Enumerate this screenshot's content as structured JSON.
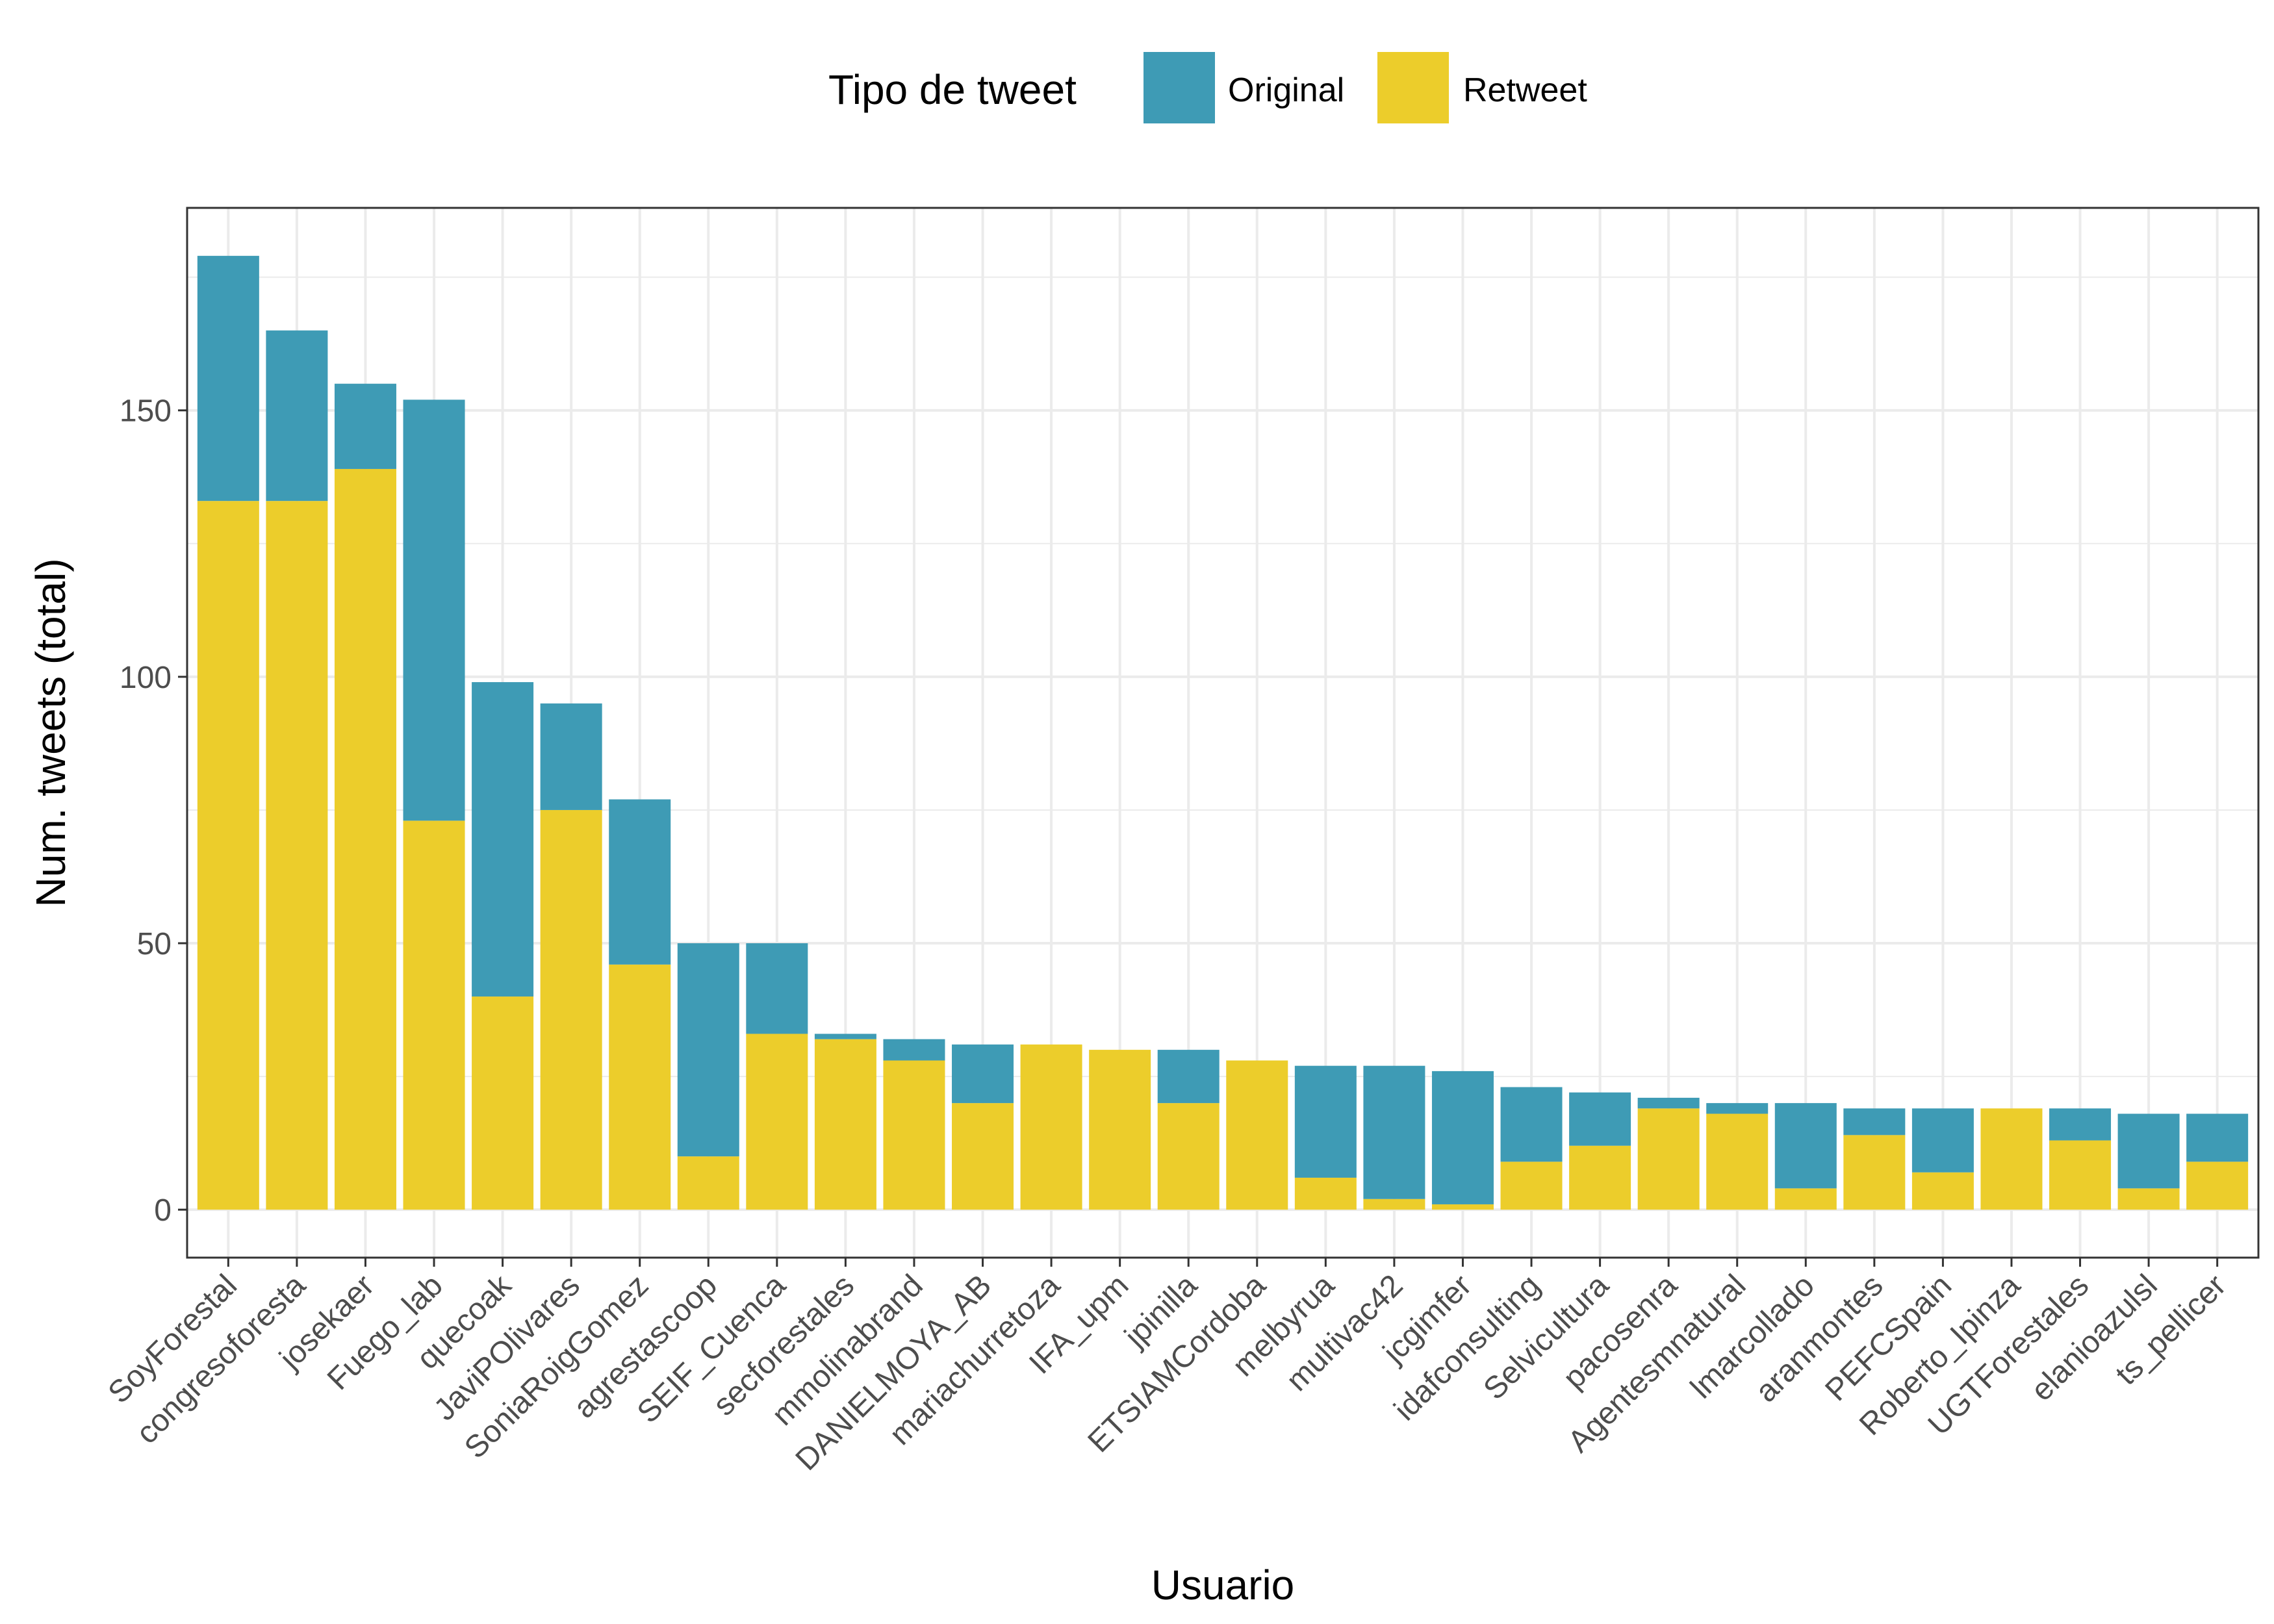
{
  "chart_data": {
    "type": "bar",
    "stacked": true,
    "title": "",
    "xlabel": "Usuario",
    "ylabel": "Num. tweets (total)",
    "ylim": [
      -9,
      188
    ],
    "yticks": [
      0,
      50,
      100,
      150
    ],
    "grid": true,
    "legend": {
      "title": "Tipo de tweet",
      "position": "top"
    },
    "colors": {
      "Original": "#3e9bb5",
      "Retweet": "#eccd2b"
    },
    "categories": [
      "SoyForestal",
      "congresoforesta",
      "josekaer",
      "Fuego_lab",
      "quecoak",
      "JaviPOlivares",
      "SoniaRoigGomez",
      "agrestascoop",
      "SEIF_Cuenca",
      "secforestales",
      "mmolinabrand",
      "DANIELMOYA_AB",
      "mariachurretoza",
      "IFA_upm",
      "jpinilla",
      "ETSIAMCordoba",
      "melbyrua",
      "multivac42",
      "jcgimfer",
      "idafconsulting",
      "Selvicultura",
      "pacosenra",
      "Agentesmnatural",
      "lmarcollado",
      "aranmontes",
      "PEFCSpain",
      "Roberto_Ipinza",
      "UGTForestales",
      "elanioazulsl",
      "ts_pellicer"
    ],
    "series": [
      {
        "name": "Retweet",
        "values": [
          133,
          133,
          139,
          73,
          40,
          75,
          46,
          10,
          33,
          32,
          28,
          20,
          31,
          30,
          20,
          28,
          6,
          2,
          1,
          9,
          12,
          19,
          18,
          4,
          14,
          7,
          19,
          13,
          4,
          9
        ]
      },
      {
        "name": "Original",
        "values": [
          46,
          32,
          16,
          79,
          59,
          20,
          31,
          40,
          17,
          1,
          4,
          11,
          0,
          0,
          10,
          0,
          21,
          25,
          25,
          14,
          10,
          2,
          2,
          16,
          5,
          12,
          0,
          6,
          14,
          9
        ]
      }
    ]
  }
}
